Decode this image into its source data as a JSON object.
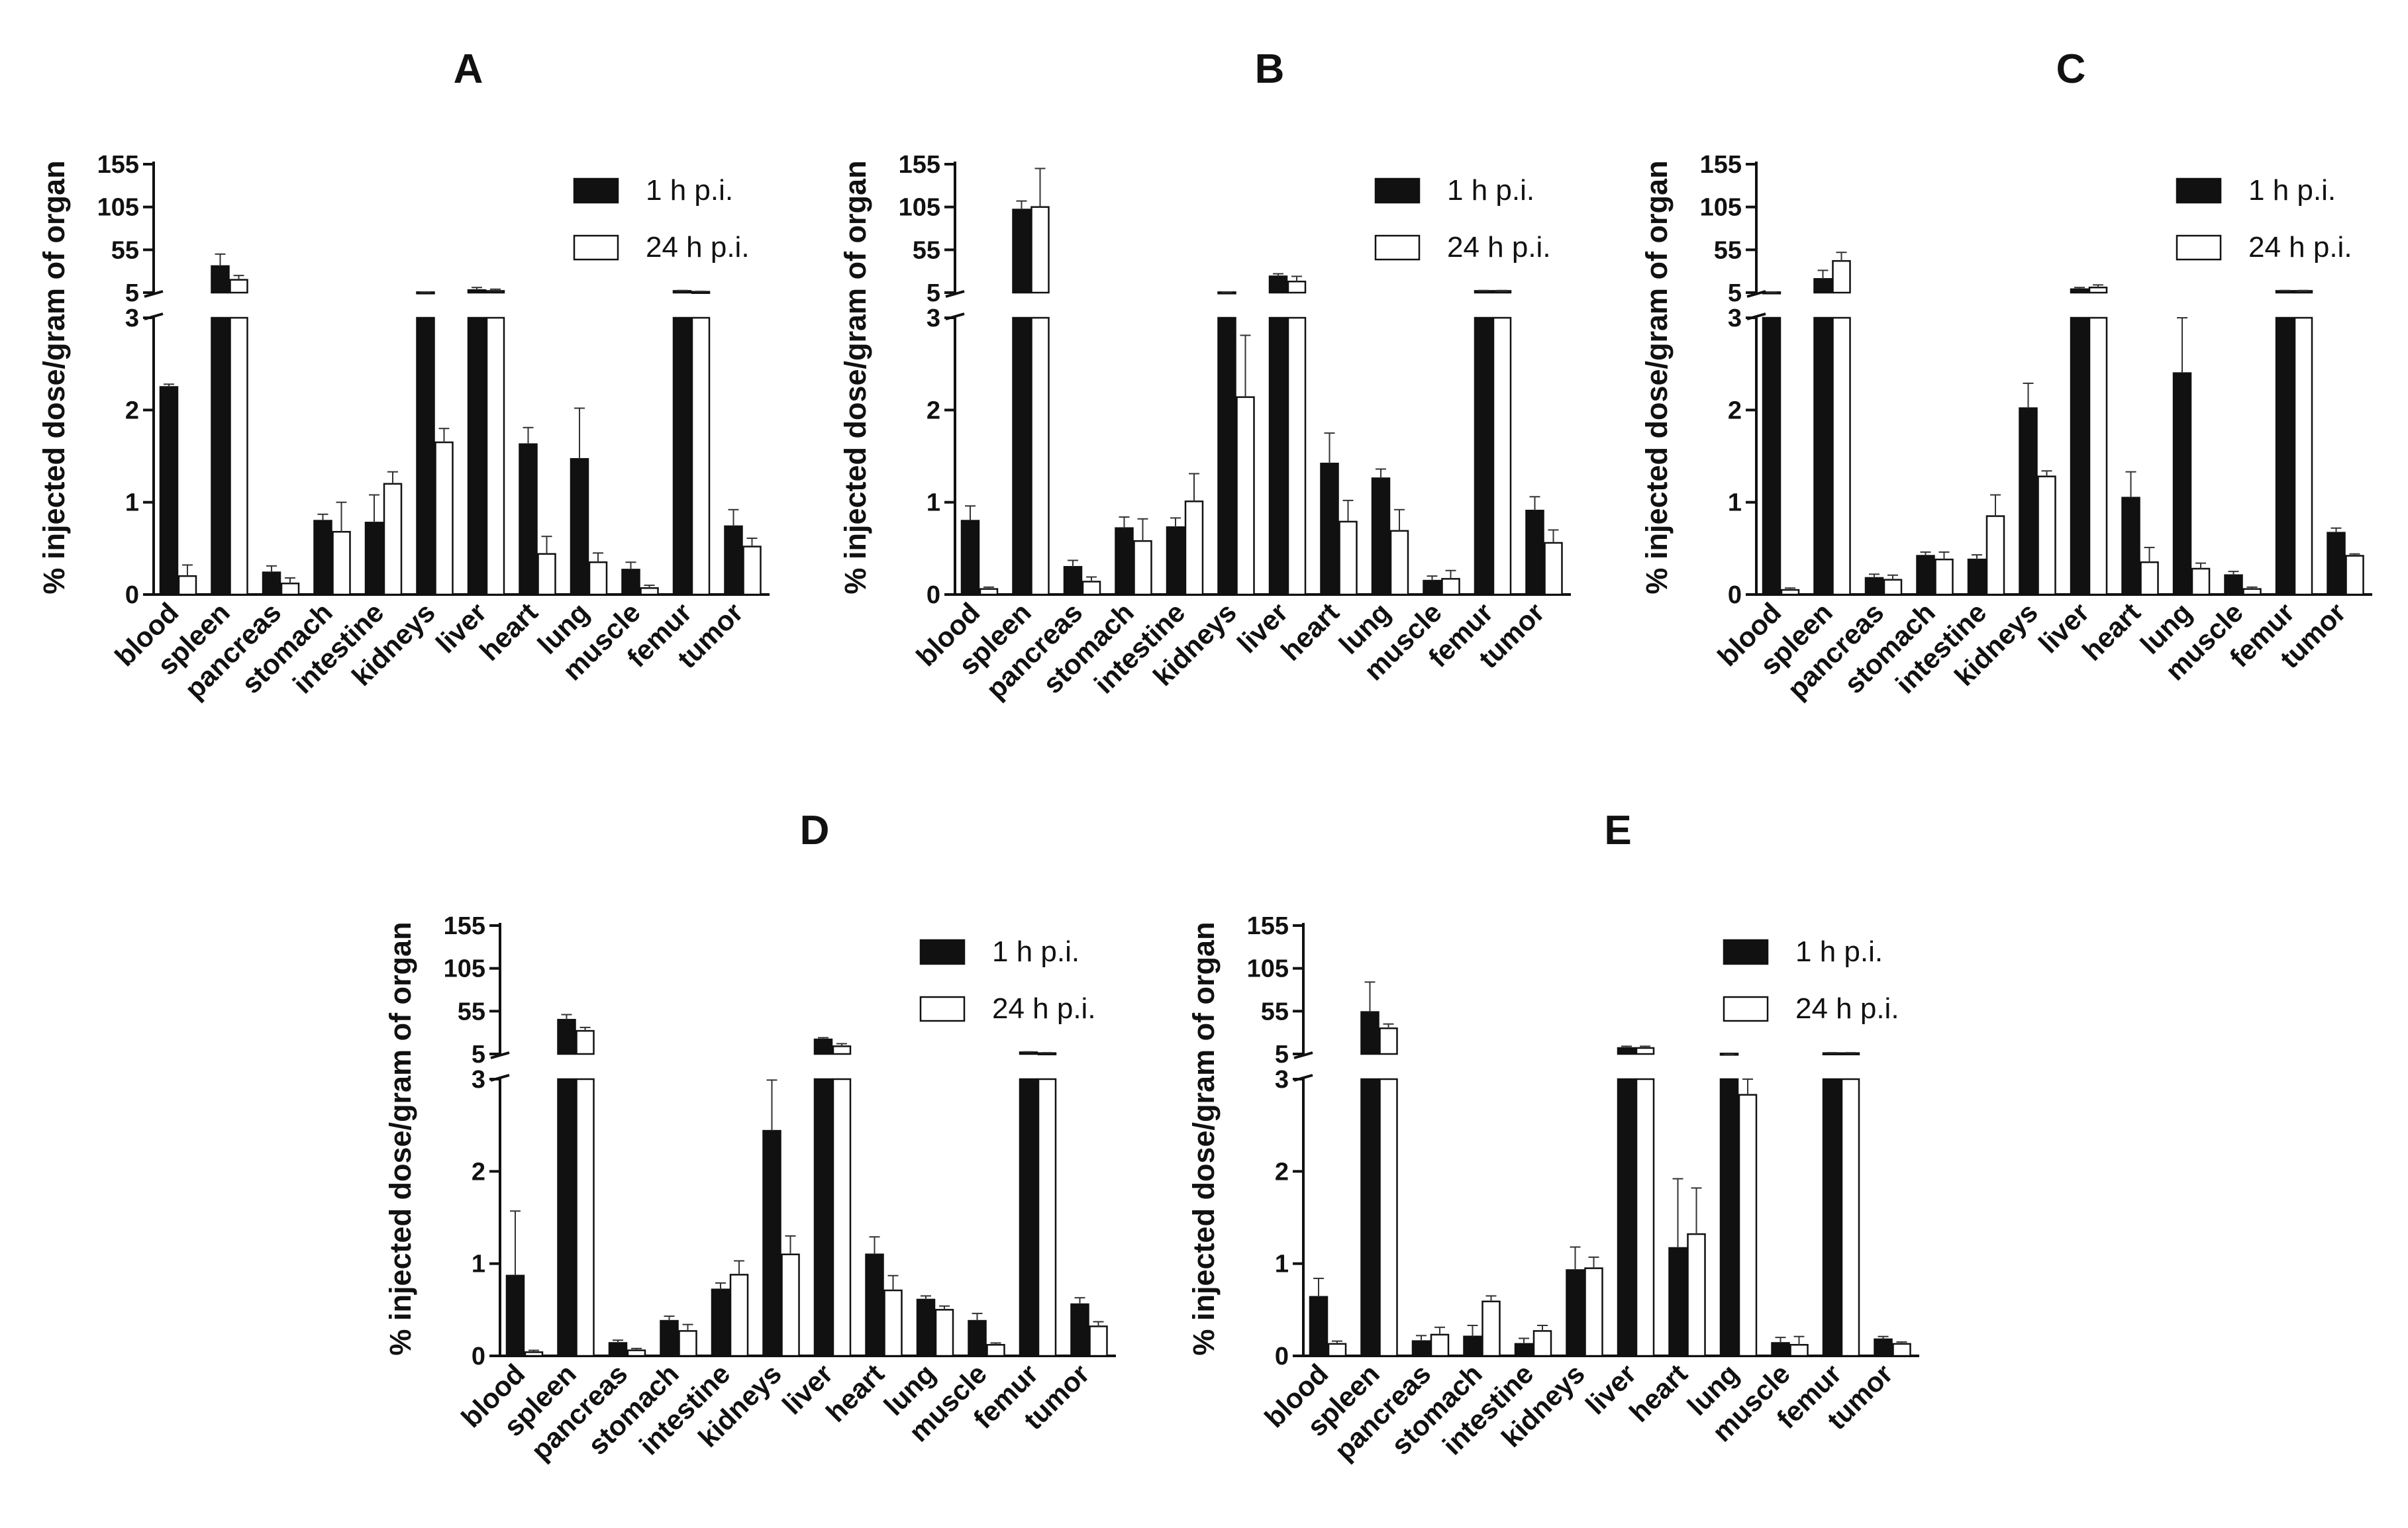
{
  "chart_data": [
    {
      "type": "bar",
      "title": "A",
      "ylabel": "% injected dose/gram of organ",
      "categories": [
        "blood",
        "spleen",
        "pancreas",
        "stomach",
        "intestine",
        "kidneys",
        "liver",
        "heart",
        "lung",
        "muscle",
        "femur",
        "tumor"
      ],
      "y_axis": {
        "broken": true,
        "lower_range": [
          0,
          3
        ],
        "lower_ticks": [
          "0",
          "1",
          "2",
          "3"
        ],
        "upper_range": [
          5,
          155
        ],
        "upper_ticks": [
          "5",
          "55",
          "105",
          "155"
        ]
      },
      "series": [
        {
          "name": "1 h p.i.",
          "color": "#111111",
          "values": [
            2.25,
            36,
            0.24,
            0.8,
            0.78,
            5,
            8,
            1.63,
            1.47,
            0.27,
            7,
            0.74
          ],
          "errors": [
            0.03,
            14,
            0.07,
            0.07,
            0.3,
            0.5,
            3,
            0.18,
            0.55,
            0.08,
            0.5,
            0.18
          ]
        },
        {
          "name": "24 h p.i.",
          "color": "#ffffff",
          "values": [
            0.2,
            20,
            0.12,
            0.68,
            1.2,
            1.65,
            7,
            0.44,
            0.35,
            0.07,
            6,
            0.52
          ],
          "errors": [
            0.12,
            5,
            0.06,
            0.32,
            0.13,
            0.15,
            2,
            0.19,
            0.1,
            0.03,
            0.5,
            0.09
          ]
        }
      ]
    },
    {
      "type": "bar",
      "title": "B",
      "ylabel": "% injected dose/gram of organ",
      "categories": [
        "blood",
        "spleen",
        "pancreas",
        "stomach",
        "intestine",
        "kidneys",
        "liver",
        "heart",
        "lung",
        "muscle",
        "femur",
        "tumor"
      ],
      "y_axis": {
        "broken": true,
        "lower_range": [
          0,
          3
        ],
        "lower_ticks": [
          "0",
          "1",
          "2",
          "3"
        ],
        "upper_range": [
          5,
          155
        ],
        "upper_ticks": [
          "5",
          "55",
          "105",
          "155"
        ]
      },
      "series": [
        {
          "name": "1 h p.i.",
          "color": "#111111",
          "values": [
            0.8,
            102,
            0.3,
            0.72,
            0.73,
            5,
            24,
            1.42,
            1.26,
            0.15,
            7,
            0.91
          ],
          "errors": [
            0.16,
            10,
            0.07,
            0.12,
            0.1,
            0.5,
            3,
            0.33,
            0.1,
            0.05,
            0.5,
            0.15
          ]
        },
        {
          "name": "24 h p.i.",
          "color": "#ffffff",
          "values": [
            0.06,
            105,
            0.14,
            0.58,
            1.01,
            2.14,
            18,
            0.79,
            0.69,
            0.17,
            7,
            0.56
          ],
          "errors": [
            0.02,
            45,
            0.05,
            0.24,
            0.3,
            0.67,
            6,
            0.23,
            0.23,
            0.09,
            0.5,
            0.14
          ]
        }
      ]
    },
    {
      "type": "bar",
      "title": "C",
      "ylabel": "% injected dose/gram of organ",
      "categories": [
        "blood",
        "spleen",
        "pancreas",
        "stomach",
        "intestine",
        "kidneys",
        "liver",
        "heart",
        "lung",
        "muscle",
        "femur",
        "tumor"
      ],
      "y_axis": {
        "broken": true,
        "lower_range": [
          0,
          3
        ],
        "lower_ticks": [
          "0",
          "1",
          "2",
          "3"
        ],
        "upper_range": [
          5,
          155
        ],
        "upper_ticks": [
          "5",
          "55",
          "105",
          "155"
        ]
      },
      "series": [
        {
          "name": "1 h p.i.",
          "color": "#111111",
          "values": [
            5,
            21,
            0.18,
            0.42,
            0.38,
            2.02,
            9,
            1.05,
            2.4,
            0.21,
            7,
            0.67
          ],
          "errors": [
            0.5,
            10,
            0.04,
            0.04,
            0.05,
            0.27,
            2,
            0.28,
            0.6,
            0.04,
            0.5,
            0.05
          ]
        },
        {
          "name": "24 h p.i.",
          "color": "#ffffff",
          "values": [
            0.05,
            42,
            0.16,
            0.38,
            0.85,
            1.28,
            11,
            0.35,
            0.28,
            0.06,
            7,
            0.42
          ],
          "errors": [
            0.02,
            10,
            0.05,
            0.08,
            0.23,
            0.06,
            3,
            0.16,
            0.06,
            0.02,
            0.5,
            0.02
          ]
        }
      ]
    },
    {
      "type": "bar",
      "title": "D",
      "ylabel": "% injected dose/gram of organ",
      "categories": [
        "blood",
        "spleen",
        "pancreas",
        "stomach",
        "intestine",
        "kidneys",
        "liver",
        "heart",
        "lung",
        "muscle",
        "femur",
        "tumor"
      ],
      "y_axis": {
        "broken": true,
        "lower_range": [
          0,
          3
        ],
        "lower_ticks": [
          "0",
          "1",
          "2",
          "3"
        ],
        "upper_range": [
          5,
          155
        ],
        "upper_ticks": [
          "5",
          "55",
          "105",
          "155"
        ]
      },
      "series": [
        {
          "name": "1 h p.i.",
          "color": "#111111",
          "values": [
            0.87,
            45,
            0.14,
            0.38,
            0.72,
            2.44,
            22,
            1.1,
            0.61,
            0.38,
            7,
            0.56
          ],
          "errors": [
            0.7,
            6,
            0.03,
            0.05,
            0.07,
            0.55,
            2,
            0.19,
            0.04,
            0.08,
            0.5,
            0.07
          ]
        },
        {
          "name": "24 h p.i.",
          "color": "#ffffff",
          "values": [
            0.04,
            32,
            0.06,
            0.27,
            0.88,
            1.1,
            14,
            0.71,
            0.5,
            0.12,
            6,
            0.32
          ],
          "errors": [
            0.02,
            4,
            0.02,
            0.07,
            0.15,
            0.2,
            3,
            0.16,
            0.04,
            0.02,
            0.5,
            0.05
          ]
        }
      ]
    },
    {
      "type": "bar",
      "title": "E",
      "ylabel": "% injected dose/gram of organ",
      "categories": [
        "blood",
        "spleen",
        "pancreas",
        "stomach",
        "intestine",
        "kidneys",
        "liver",
        "heart",
        "lung",
        "muscle",
        "femur",
        "tumor"
      ],
      "y_axis": {
        "broken": true,
        "lower_range": [
          0,
          3
        ],
        "lower_ticks": [
          "0",
          "1",
          "2",
          "3"
        ],
        "upper_range": [
          5,
          155
        ],
        "upper_ticks": [
          "5",
          "55",
          "105",
          "155"
        ]
      },
      "series": [
        {
          "name": "1 h p.i.",
          "color": "#111111",
          "values": [
            0.64,
            54,
            0.16,
            0.21,
            0.13,
            0.93,
            12,
            1.17,
            4,
            0.14,
            6,
            0.18
          ],
          "errors": [
            0.2,
            35,
            0.06,
            0.12,
            0.06,
            0.25,
            2,
            0.75,
            0.5,
            0.06,
            0.5,
            0.03
          ]
        },
        {
          "name": "24 h p.i.",
          "color": "#ffffff",
          "values": [
            0.13,
            35,
            0.23,
            0.59,
            0.27,
            0.95,
            12,
            1.32,
            2.83,
            0.12,
            6,
            0.13
          ],
          "errors": [
            0.03,
            5,
            0.08,
            0.06,
            0.06,
            0.12,
            2,
            0.5,
            0.2,
            0.09,
            0.5,
            0.02
          ]
        }
      ]
    }
  ]
}
